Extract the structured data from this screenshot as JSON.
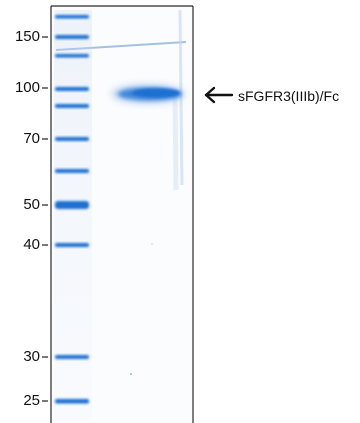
{
  "marker_labels": [
    "150",
    "100",
    "70",
    "50",
    "40",
    "30",
    "25"
  ],
  "band_label": "sFGFR3(IIIb)/Fc",
  "colors": {
    "gel_background": "#fbfcfe",
    "band_blue": "#1f6fd0",
    "text": "#111111"
  }
}
